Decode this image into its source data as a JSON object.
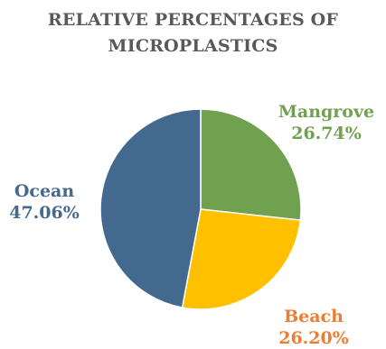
{
  "chart_data": {
    "type": "pie",
    "title_lines": [
      "RELATIVE PERCENTAGES OF",
      "MICROPLASTICS"
    ],
    "slices": [
      {
        "label": "Mangrove",
        "value": 26.74,
        "display": "26.74%",
        "color": "#70a14f",
        "label_color": "#70a14f"
      },
      {
        "label": "Beach",
        "value": 26.2,
        "display": "26.20%",
        "color": "#ffc000",
        "label_color": "#ed7d31"
      },
      {
        "label": "Ocean",
        "value": 47.06,
        "display": "47.06%",
        "color": "#44698f",
        "label_color": "#44698f"
      }
    ],
    "start_angle": "12 o'clock",
    "direction": "clockwise",
    "legend": "none"
  }
}
